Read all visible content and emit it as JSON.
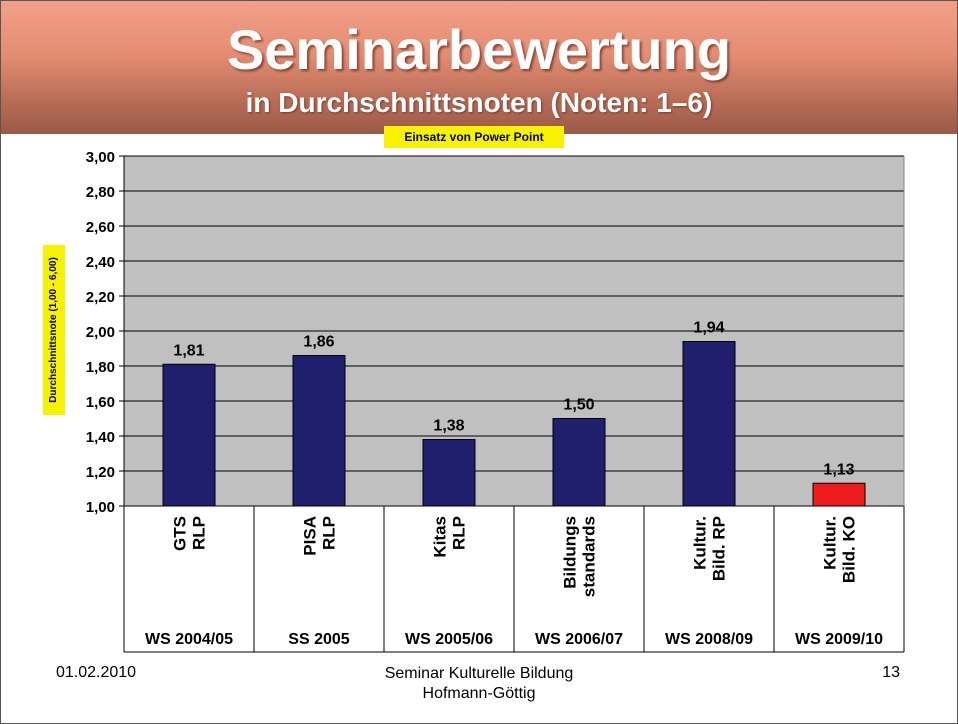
{
  "slide": {
    "title": "Seminarbewertung",
    "subtitle": "in Durchschnittsnoten (Noten: 1–6)",
    "note_badge": "Einsatz von Power Point",
    "footer": {
      "date": "01.02.2010",
      "center_line1": "Seminar Kulturelle Bildung",
      "center_line2": "Hofmann-Göttig",
      "page_number": "13"
    }
  },
  "colors": {
    "header_band": "#e48d72",
    "plot_background": "#c0c0c0",
    "bar_default": "#1f1f6e",
    "bar_highlight": "#ee1c1c",
    "label_highlight": "#f6f200"
  },
  "chart_data": {
    "type": "bar",
    "title": "",
    "ylabel": "Durchschnittsnote (1,00 - 6,00)",
    "xlabel": "",
    "ylim": [
      1.0,
      3.0
    ],
    "y_ticks": [
      "1,00",
      "1,20",
      "1,40",
      "1,60",
      "1,80",
      "2,00",
      "2,20",
      "2,40",
      "2,60",
      "2,80",
      "3,00"
    ],
    "grid": true,
    "categories": [
      {
        "lines": [
          "GTS",
          "RLP"
        ],
        "period": "WS 2004/05"
      },
      {
        "lines": [
          "PISA",
          "RLP"
        ],
        "period": "SS 2005"
      },
      {
        "lines": [
          "Kitas",
          "RLP"
        ],
        "period": "WS 2005/06"
      },
      {
        "lines": [
          "Bildungs",
          "standards"
        ],
        "period": "WS 2006/07"
      },
      {
        "lines": [
          "Kultur.",
          "Bild. RP"
        ],
        "period": "WS 2008/09"
      },
      {
        "lines": [
          "Kultur.",
          "Bild. KO"
        ],
        "period": "WS 2009/10"
      }
    ],
    "values": [
      1.81,
      1.86,
      1.38,
      1.5,
      1.94,
      1.13
    ],
    "value_labels": [
      "1,81",
      "1,86",
      "1,38",
      "1,50",
      "1,94",
      "1,13"
    ],
    "highlight_index": 5
  }
}
